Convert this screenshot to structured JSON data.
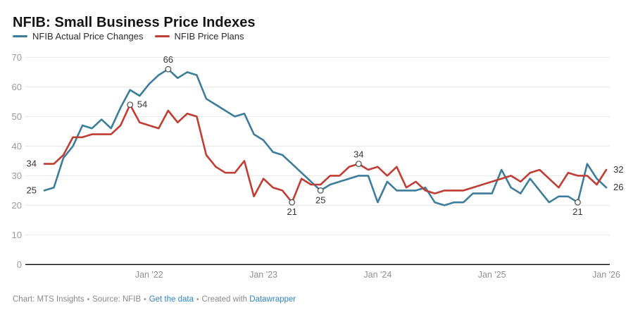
{
  "title": "NFIB: Small Business Price Indexes",
  "legend": {
    "items": [
      {
        "label": "NFIB Actual Price Changes",
        "color": "#3c7d9c"
      },
      {
        "label": "NFIB Price Plans",
        "color": "#c03d33"
      }
    ]
  },
  "footer": {
    "credit": "Chart: MTS Insights",
    "separator": "•",
    "source": "Source: NFIB",
    "get_data_link": "Get the data",
    "created_with": "Created with",
    "tool_link": "Datawrapper"
  },
  "chart_data": {
    "type": "line",
    "title": "NFIB: Small Business Price Indexes",
    "frequency": "monthly",
    "x_range": [
      "Feb 2021",
      "Jan 2026"
    ],
    "ylim": [
      0,
      70
    ],
    "y_ticks": [
      0,
      10,
      20,
      30,
      40,
      50,
      60,
      70
    ],
    "grid": "horizontal",
    "legend_position": "top-left",
    "x_tick_labels": [
      {
        "label": "Jan '22",
        "month_index": 11
      },
      {
        "label": "Jan '23",
        "month_index": 23
      },
      {
        "label": "Jan '24",
        "month_index": 35
      },
      {
        "label": "Jan '25",
        "month_index": 47
      },
      {
        "label": "Jan '26",
        "month_index": 59
      }
    ],
    "months": [
      "Feb 2021",
      "Mar 2021",
      "Apr 2021",
      "May 2021",
      "Jun 2021",
      "Jul 2021",
      "Aug 2021",
      "Sep 2021",
      "Oct 2021",
      "Nov 2021",
      "Dec 2021",
      "Jan 2022",
      "Feb 2022",
      "Mar 2022",
      "Apr 2022",
      "May 2022",
      "Jun 2022",
      "Jul 2022",
      "Aug 2022",
      "Sep 2022",
      "Oct 2022",
      "Nov 2022",
      "Dec 2022",
      "Jan 2023",
      "Feb 2023",
      "Mar 2023",
      "Apr 2023",
      "May 2023",
      "Jun 2023",
      "Jul 2023",
      "Aug 2023",
      "Sep 2023",
      "Oct 2023",
      "Nov 2023",
      "Dec 2023",
      "Jan 2024",
      "Feb 2024",
      "Mar 2024",
      "Apr 2024",
      "May 2024",
      "Jun 2024",
      "Jul 2024",
      "Aug 2024",
      "Sep 2024",
      "Oct 2024",
      "Nov 2024",
      "Dec 2024",
      "Jan 2025",
      "Feb 2025",
      "Mar 2025",
      "Apr 2025",
      "May 2025",
      "Jun 2025",
      "Jul 2025",
      "Aug 2025",
      "Sep 2025",
      "Oct 2025",
      "Nov 2025",
      "Dec 2025",
      "Jan 2026"
    ],
    "series": [
      {
        "name": "NFIB Actual Price Changes",
        "color": "#3c7d9c",
        "values": [
          25,
          26,
          36,
          40,
          47,
          46,
          49,
          46,
          53,
          59,
          57,
          61,
          64,
          66,
          63,
          65,
          64,
          56,
          54,
          52,
          50,
          51,
          44,
          42,
          38,
          37,
          34,
          31,
          28,
          25,
          27,
          28,
          29,
          30,
          30,
          21,
          28,
          25,
          25,
          25,
          26,
          21,
          20,
          21,
          21,
          24,
          24,
          24,
          32,
          26,
          24,
          29,
          25,
          21,
          23,
          23,
          21,
          34,
          29,
          26
        ]
      },
      {
        "name": "NFIB Price Plans",
        "color": "#c03d33",
        "values": [
          34,
          34,
          37,
          43,
          43,
          44,
          44,
          44,
          47,
          54,
          48,
          47,
          46,
          52,
          48,
          51,
          50,
          37,
          33,
          31,
          31,
          35,
          23,
          29,
          26,
          25,
          21,
          29,
          27,
          27,
          30,
          30,
          33,
          34,
          32,
          33,
          30,
          33,
          26,
          28,
          25,
          24,
          25,
          25,
          25,
          26,
          27,
          28,
          29,
          30,
          28,
          31,
          32,
          29,
          26,
          31,
          30,
          30,
          27,
          32
        ]
      }
    ],
    "annotations": [
      {
        "series": 0,
        "index": 0,
        "text": "25",
        "position": "left",
        "circle": false
      },
      {
        "series": 0,
        "index": 13,
        "text": "66",
        "position": "above",
        "circle": true
      },
      {
        "series": 0,
        "index": 29,
        "text": "25",
        "position": "below",
        "circle": true
      },
      {
        "series": 0,
        "index": 56,
        "text": "21",
        "position": "below",
        "circle": true
      },
      {
        "series": 0,
        "index": 59,
        "text": "26",
        "position": "right",
        "circle": false
      },
      {
        "series": 1,
        "index": 0,
        "text": "34",
        "position": "left",
        "circle": false
      },
      {
        "series": 1,
        "index": 9,
        "text": "54",
        "position": "right",
        "circle": true
      },
      {
        "series": 1,
        "index": 26,
        "text": "21",
        "position": "below",
        "circle": true
      },
      {
        "series": 1,
        "index": 33,
        "text": "34",
        "position": "above",
        "circle": true
      },
      {
        "series": 1,
        "index": 59,
        "text": "32",
        "position": "right",
        "circle": false
      }
    ]
  }
}
